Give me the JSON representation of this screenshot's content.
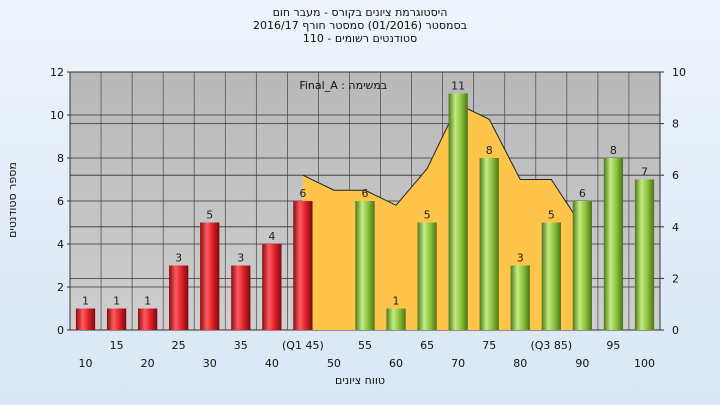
{
  "titles": {
    "line1": "היסטוגרמת ציונים בקורס - מעבר חום",
    "line2": "בסמסטר (01/2016) סמסטר חורף 2016/17",
    "line3": "סטודנטים רשומים - 110"
  },
  "chart_data": {
    "type": "bar",
    "title": "היסטוגרמת ציונים בקורס - מעבר חום",
    "ylabel": "מספר סטודנטים",
    "xlabel": "טווח ציונים",
    "annotation": "Final_A : במשימה",
    "ylim": [
      0,
      12
    ],
    "y2lim": [
      0,
      10
    ],
    "yticks": [
      0,
      2,
      4,
      6,
      8,
      10,
      12
    ],
    "y2ticks": [
      0,
      2,
      4,
      6,
      8,
      10
    ],
    "grid": true,
    "categories": [
      "10",
      "15",
      "20",
      "25",
      "30",
      "35",
      "40",
      "(Q1 45)",
      "50",
      "55",
      "60",
      "65",
      "70",
      "75",
      "80",
      "(Q3 85)",
      "90",
      "95",
      "100"
    ],
    "values": [
      1,
      1,
      1,
      3,
      5,
      3,
      4,
      6,
      0,
      6,
      1,
      5,
      11,
      8,
      3,
      5,
      6,
      8,
      7
    ],
    "bar_colors": [
      "red",
      "red",
      "red",
      "red",
      "red",
      "red",
      "red",
      "red",
      "none",
      "green",
      "green",
      "green",
      "green",
      "green",
      "green",
      "green",
      "green",
      "green",
      "green"
    ],
    "area_series": {
      "values": [
        null,
        null,
        null,
        null,
        null,
        null,
        null,
        7.2,
        6.5,
        6.5,
        5.8,
        7.5,
        10.5,
        9.8,
        7.0,
        7.0,
        4.8,
        null,
        null
      ]
    },
    "colors": {
      "red_bar": "#e0202a",
      "green_bar": "#8cc43c",
      "area": "#ffc54a",
      "plot_bg": "#c0c0c0"
    }
  }
}
